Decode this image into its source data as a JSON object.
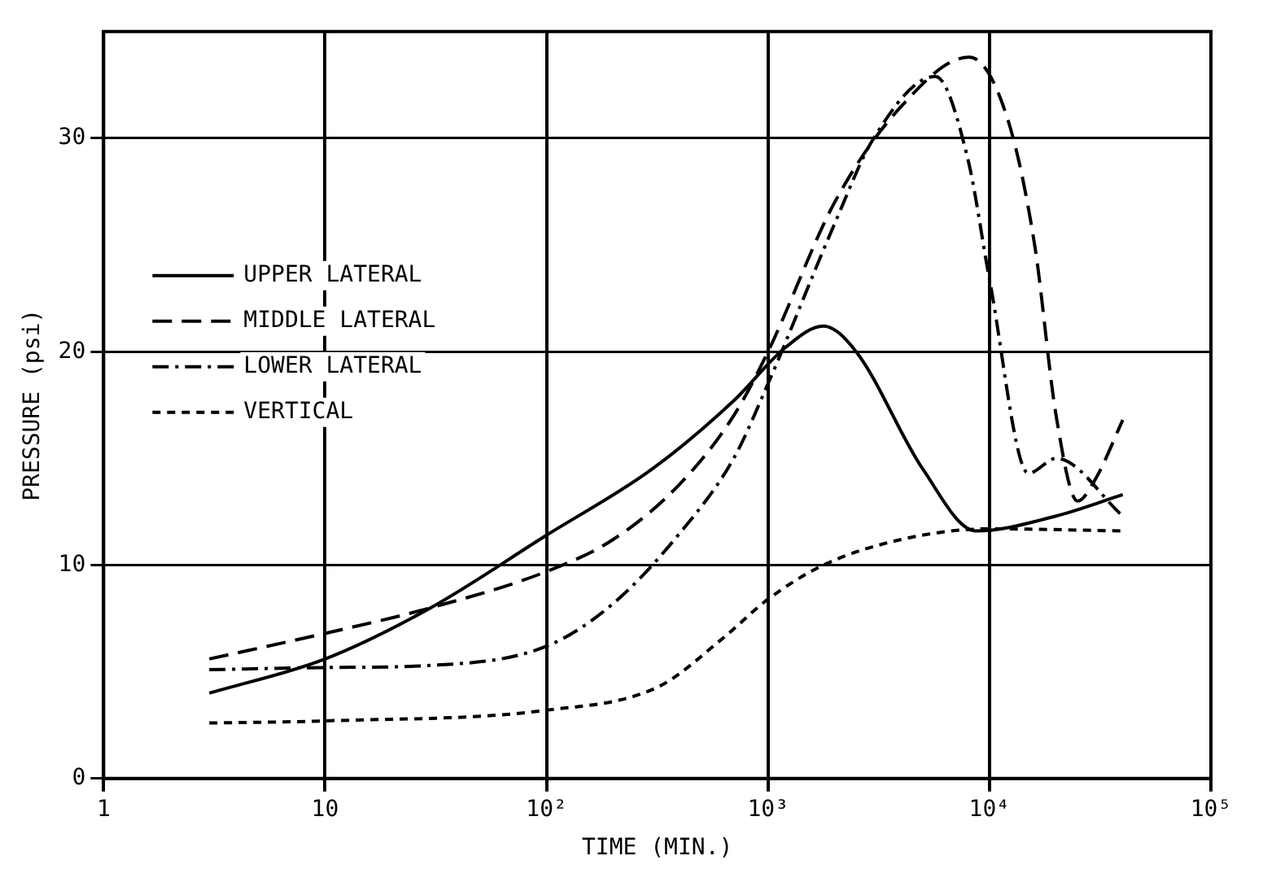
{
  "chart_data": {
    "type": "line",
    "xlabel": "TIME (MIN.)",
    "ylabel": "PRESSURE (psi)",
    "log": "x",
    "grid": true,
    "legend": "left",
    "marker": "none",
    "xlim": [
      1,
      100000
    ],
    "xticks": [
      1,
      10,
      {
        "value": 100,
        "label": "10²"
      },
      {
        "value": 1000,
        "label": "10³"
      },
      {
        "value": 10000,
        "label": "10⁴"
      },
      {
        "value": 100000,
        "label": "10⁵"
      }
    ],
    "ylim": [
      0,
      35
    ],
    "yticks": [
      0,
      10,
      20,
      30
    ],
    "series": [
      {
        "name": "UPPER LATERAL",
        "color": "#000000",
        "line_style": "solid",
        "x": [
          3,
          10,
          30,
          100,
          300,
          700,
          1200,
          1780,
          2500,
          5000,
          8700,
          20000,
          40000
        ],
        "values": [
          4.0,
          5.6,
          8.0,
          11.4,
          14.5,
          17.7,
          20.2,
          21.2,
          20.0,
          14.5,
          11.6,
          12.3,
          13.3
        ]
      },
      {
        "name": "MIDDLE LATERAL",
        "color": "#000000",
        "line_style": "dashed",
        "x": [
          3,
          10,
          30,
          100,
          200,
          400,
          700,
          1000,
          2000,
          4000,
          8100,
          12000,
          16000,
          20000,
          25000,
          30000,
          40000
        ],
        "values": [
          5.6,
          6.8,
          8.0,
          9.7,
          11.2,
          13.8,
          17.0,
          20.0,
          27.0,
          31.5,
          33.8,
          31.0,
          25.0,
          17.0,
          13.0,
          14.0,
          16.8
        ]
      },
      {
        "name": "LOWER LATERAL",
        "color": "#000000",
        "line_style": "dashdot",
        "x": [
          3,
          10,
          30,
          100,
          200,
          400,
          700,
          1000,
          2000,
          3000,
          5700,
          8000,
          10000,
          15000,
          20000,
          40000
        ],
        "values": [
          5.1,
          5.2,
          5.3,
          6.2,
          8.2,
          11.5,
          15.0,
          18.5,
          26.0,
          30.0,
          32.9,
          29.0,
          23.4,
          14.3,
          15.0,
          12.3
        ]
      },
      {
        "name": "VERTICAL",
        "color": "#000000",
        "line_style": "dotted",
        "x": [
          3,
          10,
          100,
          320,
          630,
          1000,
          1780,
          4000,
          10000,
          40000
        ],
        "values": [
          2.6,
          2.7,
          3.2,
          4.3,
          6.6,
          8.4,
          10.0,
          11.2,
          11.7,
          11.6
        ]
      }
    ]
  }
}
